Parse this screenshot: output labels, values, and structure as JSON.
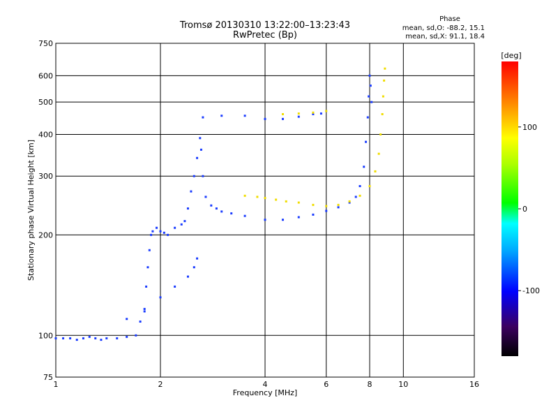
{
  "chart_data": {
    "type": "scatter",
    "title": "Tromsø 20130310 13:22:00–13:23:43",
    "subtitle": "RwPretec (Bp)",
    "xlabel": "Frequency [MHz]",
    "ylabel": "Stationary phase Virtual Height [km]",
    "x_scale": "log",
    "y_scale": "log",
    "xlim": [
      1,
      16
    ],
    "ylim": [
      75,
      750
    ],
    "xticks": [
      1,
      2,
      4,
      6,
      8,
      10,
      16
    ],
    "xtick_labels": [
      "1",
      "2",
      "4",
      "6",
      "8",
      "10",
      "16"
    ],
    "yticks": [
      75,
      100,
      200,
      300,
      400,
      500,
      600,
      750
    ],
    "ytick_labels": [
      "75",
      "100",
      "200",
      "300",
      "400",
      "500",
      "600",
      "750"
    ],
    "grid": true,
    "stats_title": "Phase",
    "stats": [
      "mean, sd,O: -88.2, 15.1",
      "mean, sd,X:  91.1, 18.4"
    ],
    "colorbar": {
      "label": "[deg]",
      "range": [
        -180,
        180
      ],
      "ticks": [
        100,
        0,
        -100
      ],
      "tick_labels": [
        "100",
        "0",
        "-100"
      ]
    },
    "series": [
      {
        "mode": "O",
        "phase_deg": -95,
        "points": [
          [
            1.0,
            98
          ],
          [
            1.05,
            98
          ],
          [
            1.1,
            98
          ],
          [
            1.15,
            97
          ],
          [
            1.2,
            98
          ],
          [
            1.25,
            99
          ],
          [
            1.3,
            98
          ],
          [
            1.35,
            97
          ],
          [
            1.4,
            98
          ],
          [
            1.5,
            98
          ],
          [
            1.6,
            99
          ],
          [
            1.7,
            100
          ],
          [
            1.75,
            110
          ],
          [
            1.8,
            120
          ],
          [
            1.82,
            140
          ],
          [
            1.84,
            160
          ],
          [
            1.86,
            180
          ],
          [
            1.88,
            200
          ],
          [
            1.9,
            205
          ],
          [
            1.95,
            210
          ],
          [
            2.0,
            205
          ],
          [
            2.05,
            203
          ],
          [
            2.1,
            200
          ],
          [
            2.2,
            210
          ],
          [
            2.3,
            215
          ],
          [
            2.35,
            220
          ],
          [
            2.4,
            240
          ],
          [
            2.45,
            270
          ],
          [
            2.5,
            300
          ],
          [
            2.55,
            340
          ],
          [
            2.6,
            390
          ],
          [
            2.62,
            360
          ],
          [
            2.65,
            300
          ],
          [
            2.7,
            260
          ],
          [
            2.8,
            245
          ],
          [
            2.9,
            240
          ],
          [
            3.0,
            235
          ],
          [
            3.2,
            232
          ],
          [
            3.5,
            228
          ],
          [
            4.0,
            222
          ],
          [
            4.5,
            222
          ],
          [
            5.0,
            226
          ],
          [
            5.5,
            230
          ],
          [
            6.0,
            236
          ],
          [
            6.5,
            242
          ],
          [
            7.0,
            250
          ],
          [
            7.3,
            260
          ],
          [
            7.5,
            280
          ],
          [
            7.7,
            320
          ],
          [
            7.8,
            380
          ],
          [
            7.9,
            450
          ],
          [
            7.95,
            520
          ],
          [
            8.0,
            600
          ],
          [
            8.05,
            560
          ],
          [
            8.1,
            500
          ],
          [
            2.65,
            450
          ],
          [
            3.0,
            455
          ],
          [
            3.5,
            455
          ],
          [
            4.0,
            445
          ],
          [
            4.5,
            445
          ],
          [
            5.0,
            452
          ],
          [
            5.5,
            460
          ],
          [
            5.8,
            462
          ],
          [
            1.6,
            112
          ],
          [
            1.8,
            118
          ],
          [
            2.0,
            130
          ],
          [
            2.2,
            140
          ],
          [
            2.4,
            150
          ],
          [
            2.5,
            160
          ],
          [
            2.55,
            170
          ]
        ]
      },
      {
        "mode": "X",
        "phase_deg": 91,
        "points": [
          [
            3.5,
            262
          ],
          [
            3.8,
            260
          ],
          [
            4.0,
            258
          ],
          [
            4.3,
            255
          ],
          [
            4.6,
            252
          ],
          [
            5.0,
            250
          ],
          [
            5.5,
            246
          ],
          [
            6.0,
            244
          ],
          [
            6.5,
            246
          ],
          [
            7.0,
            252
          ],
          [
            7.5,
            262
          ],
          [
            8.0,
            280
          ],
          [
            8.3,
            310
          ],
          [
            8.5,
            350
          ],
          [
            8.6,
            400
          ],
          [
            8.7,
            460
          ],
          [
            8.75,
            520
          ],
          [
            8.8,
            580
          ],
          [
            8.85,
            630
          ],
          [
            4.5,
            460
          ],
          [
            5.0,
            462
          ],
          [
            5.5,
            465
          ],
          [
            6.0,
            470
          ]
        ]
      }
    ]
  }
}
